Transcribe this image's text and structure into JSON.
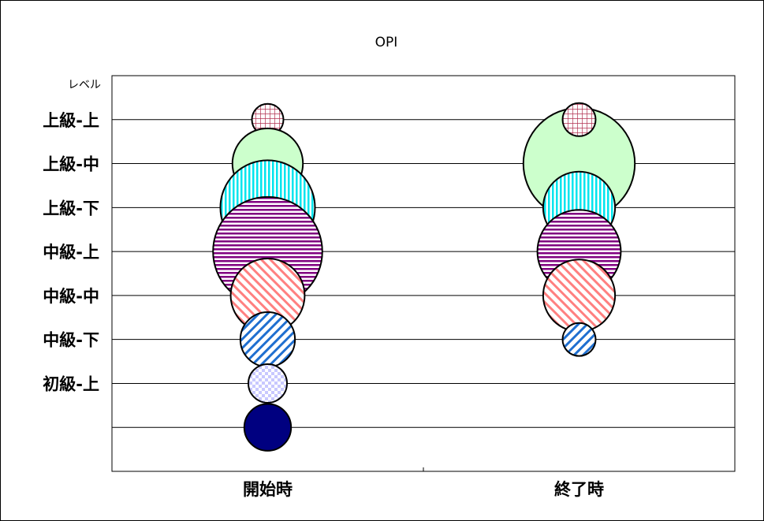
{
  "chart_data": {
    "type": "bubble",
    "title": "OPI",
    "ylabel": "レベル",
    "categories": [
      "開始時",
      "終了時"
    ],
    "levels": [
      "",
      "上級-上",
      "上級-中",
      "上級-下",
      "中級-上",
      "中級-中",
      "中級-下",
      "初級-上",
      ""
    ],
    "ylim": [
      0,
      9
    ],
    "grid": true,
    "bubbles": [
      {
        "category": "開始時",
        "level": 8,
        "size": 1,
        "fill": "#ffffff",
        "pattern": "grid",
        "patternColor": "#b03050"
      },
      {
        "category": "開始時",
        "level": 7,
        "size": 5,
        "fill": "#ccffcc",
        "pattern": "none",
        "patternColor": ""
      },
      {
        "category": "開始時",
        "level": 6,
        "size": 9,
        "fill": "#ffffff",
        "pattern": "vertical",
        "patternColor": "#00e5ee"
      },
      {
        "category": "開始時",
        "level": 5,
        "size": 12,
        "fill": "#ffffff",
        "pattern": "horizontal",
        "patternColor": "#800080"
      },
      {
        "category": "開始時",
        "level": 4,
        "size": 5.5,
        "fill": "#ffffff",
        "pattern": "diag-up",
        "patternColor": "#ff8080"
      },
      {
        "category": "開始時",
        "level": 3,
        "size": 3,
        "fill": "#ffffff",
        "pattern": "diag-down",
        "patternColor": "#1f6fd0"
      },
      {
        "category": "開始時",
        "level": 2,
        "size": 1.5,
        "fill": "#ffffff",
        "pattern": "checker",
        "patternColor": "#c8c8ff"
      },
      {
        "category": "開始時",
        "level": 1,
        "size": 2.2,
        "fill": "#000080",
        "pattern": "none",
        "patternColor": ""
      },
      {
        "category": "終了時",
        "level": 7,
        "size": 12.5,
        "fill": "#ccffcc",
        "pattern": "none",
        "patternColor": ""
      },
      {
        "category": "終了時",
        "level": 8,
        "size": 1.1,
        "fill": "#ffffff",
        "pattern": "grid",
        "patternColor": "#b03050"
      },
      {
        "category": "終了時",
        "level": 6,
        "size": 5.2,
        "fill": "#ffffff",
        "pattern": "vertical",
        "patternColor": "#00e5ee"
      },
      {
        "category": "終了時",
        "level": 5,
        "size": 7,
        "fill": "#ffffff",
        "pattern": "horizontal",
        "patternColor": "#800080"
      },
      {
        "category": "終了時",
        "level": 4,
        "size": 5.2,
        "fill": "#ffffff",
        "pattern": "diag-up",
        "patternColor": "#ff8080"
      },
      {
        "category": "終了時",
        "level": 3,
        "size": 1.1,
        "fill": "#ffffff",
        "pattern": "diag-down",
        "patternColor": "#1f6fd0"
      }
    ]
  }
}
